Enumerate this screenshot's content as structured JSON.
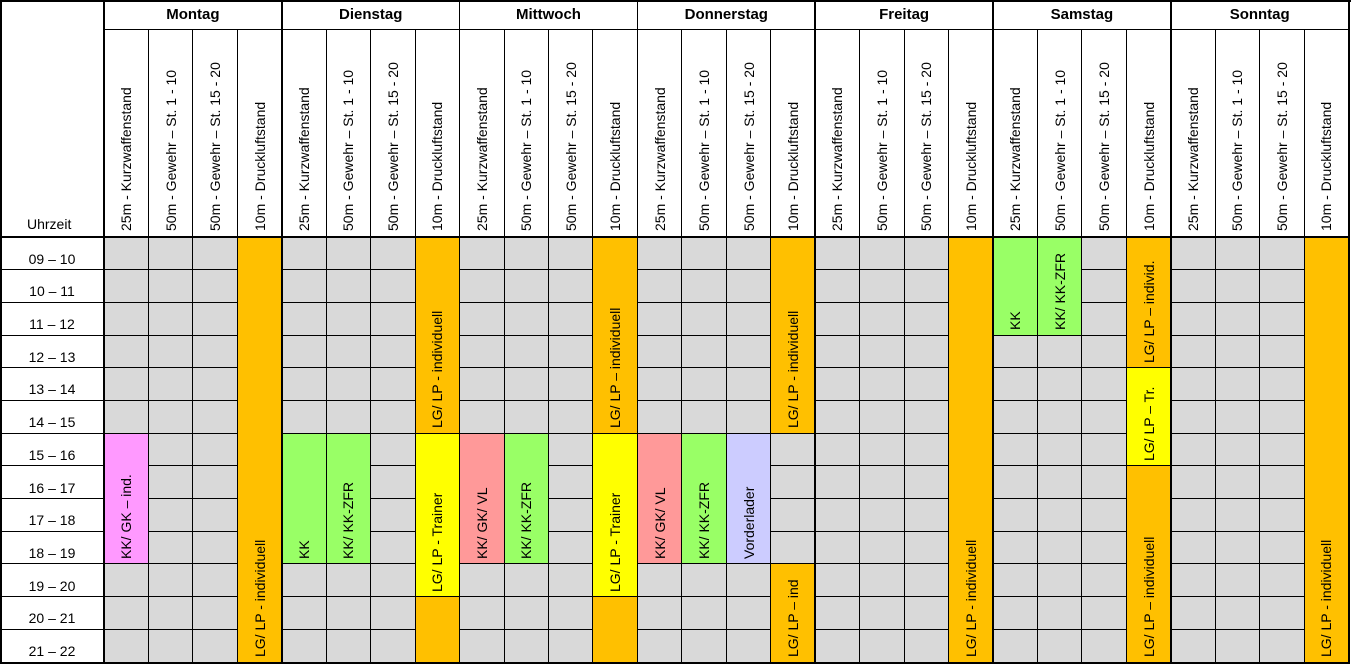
{
  "time_header": "Uhrzeit",
  "time_slots": [
    "09 – 10",
    "10 – 11",
    "11 – 12",
    "12 – 13",
    "13 – 14",
    "14 – 15",
    "15 – 16",
    "16 – 17",
    "17 – 18",
    "18 – 19",
    "19 – 20",
    "20 – 21",
    "21 – 22"
  ],
  "column_headers": [
    "25m - Kurzwaffenstand",
    "50m - Gewehr – St. 1 - 10",
    "50m - Gewehr – St. 15 - 20",
    "10m - Druckluftstand"
  ],
  "days": [
    "Montag",
    "Dienstag",
    "Mittwoch",
    "Donnerstag",
    "Freitag",
    "Samstag",
    "Sonntag"
  ],
  "colors": {
    "empty": "#d9d9d9",
    "orange": "#ffc000",
    "yellow": "#ffff00",
    "green": "#99ff66",
    "red": "#ff9999",
    "pink": "#ff99ff",
    "lavender": "#ccccff"
  },
  "blocks": [
    {
      "day": 0,
      "col": 0,
      "start": 6,
      "end": 10,
      "color": "pink",
      "label": "KK/ GK – ind."
    },
    {
      "day": 0,
      "col": 3,
      "start": 0,
      "end": 13,
      "color": "orange",
      "label": "LG/ LP - individuell"
    },
    {
      "day": 1,
      "col": 0,
      "start": 6,
      "end": 10,
      "color": "green",
      "label": "KK"
    },
    {
      "day": 1,
      "col": 1,
      "start": 6,
      "end": 10,
      "color": "green",
      "label": "KK/ KK-ZFR"
    },
    {
      "day": 1,
      "col": 3,
      "start": 0,
      "end": 6,
      "color": "orange",
      "label": "LG/ LP - individuell"
    },
    {
      "day": 1,
      "col": 3,
      "start": 6,
      "end": 11,
      "color": "yellow",
      "label": "LG/ LP - Trainer"
    },
    {
      "day": 1,
      "col": 3,
      "start": 11,
      "end": 13,
      "color": "orange",
      "label": ""
    },
    {
      "day": 2,
      "col": 0,
      "start": 6,
      "end": 10,
      "color": "red",
      "label": "KK/ GK/ VL"
    },
    {
      "day": 2,
      "col": 1,
      "start": 6,
      "end": 10,
      "color": "green",
      "label": "KK/ KK-ZFR"
    },
    {
      "day": 2,
      "col": 3,
      "start": 0,
      "end": 6,
      "color": "orange",
      "label": "LG/ LP – individuell"
    },
    {
      "day": 2,
      "col": 3,
      "start": 6,
      "end": 11,
      "color": "yellow",
      "label": "LG/ LP - Trainer"
    },
    {
      "day": 2,
      "col": 3,
      "start": 11,
      "end": 13,
      "color": "orange",
      "label": ""
    },
    {
      "day": 3,
      "col": 0,
      "start": 6,
      "end": 10,
      "color": "red",
      "label": "KK/ GK/ VL"
    },
    {
      "day": 3,
      "col": 1,
      "start": 6,
      "end": 10,
      "color": "green",
      "label": "KK/ KK-ZFR"
    },
    {
      "day": 3,
      "col": 2,
      "start": 6,
      "end": 10,
      "color": "lavender",
      "label": "Vorderlader"
    },
    {
      "day": 3,
      "col": 3,
      "start": 0,
      "end": 6,
      "color": "orange",
      "label": "LG/ LP - individuell"
    },
    {
      "day": 3,
      "col": 3,
      "start": 10,
      "end": 13,
      "color": "orange",
      "label": "LG/ LP – ind"
    },
    {
      "day": 4,
      "col": 3,
      "start": 0,
      "end": 13,
      "color": "orange",
      "label": "LG/ LP - individuell"
    },
    {
      "day": 5,
      "col": 0,
      "start": 0,
      "end": 3,
      "color": "green",
      "label": "KK"
    },
    {
      "day": 5,
      "col": 1,
      "start": 0,
      "end": 3,
      "color": "green",
      "label": "KK/ KK-ZFR"
    },
    {
      "day": 5,
      "col": 3,
      "start": 0,
      "end": 4,
      "color": "orange",
      "label": "LG/ LP – individ."
    },
    {
      "day": 5,
      "col": 3,
      "start": 4,
      "end": 7,
      "color": "yellow",
      "label": "LG/ LP – Tr."
    },
    {
      "day": 5,
      "col": 3,
      "start": 7,
      "end": 13,
      "color": "orange",
      "label": "LG/ LP – individuell"
    },
    {
      "day": 6,
      "col": 3,
      "start": 0,
      "end": 13,
      "color": "orange",
      "label": "LG/ LP - individuell"
    }
  ]
}
